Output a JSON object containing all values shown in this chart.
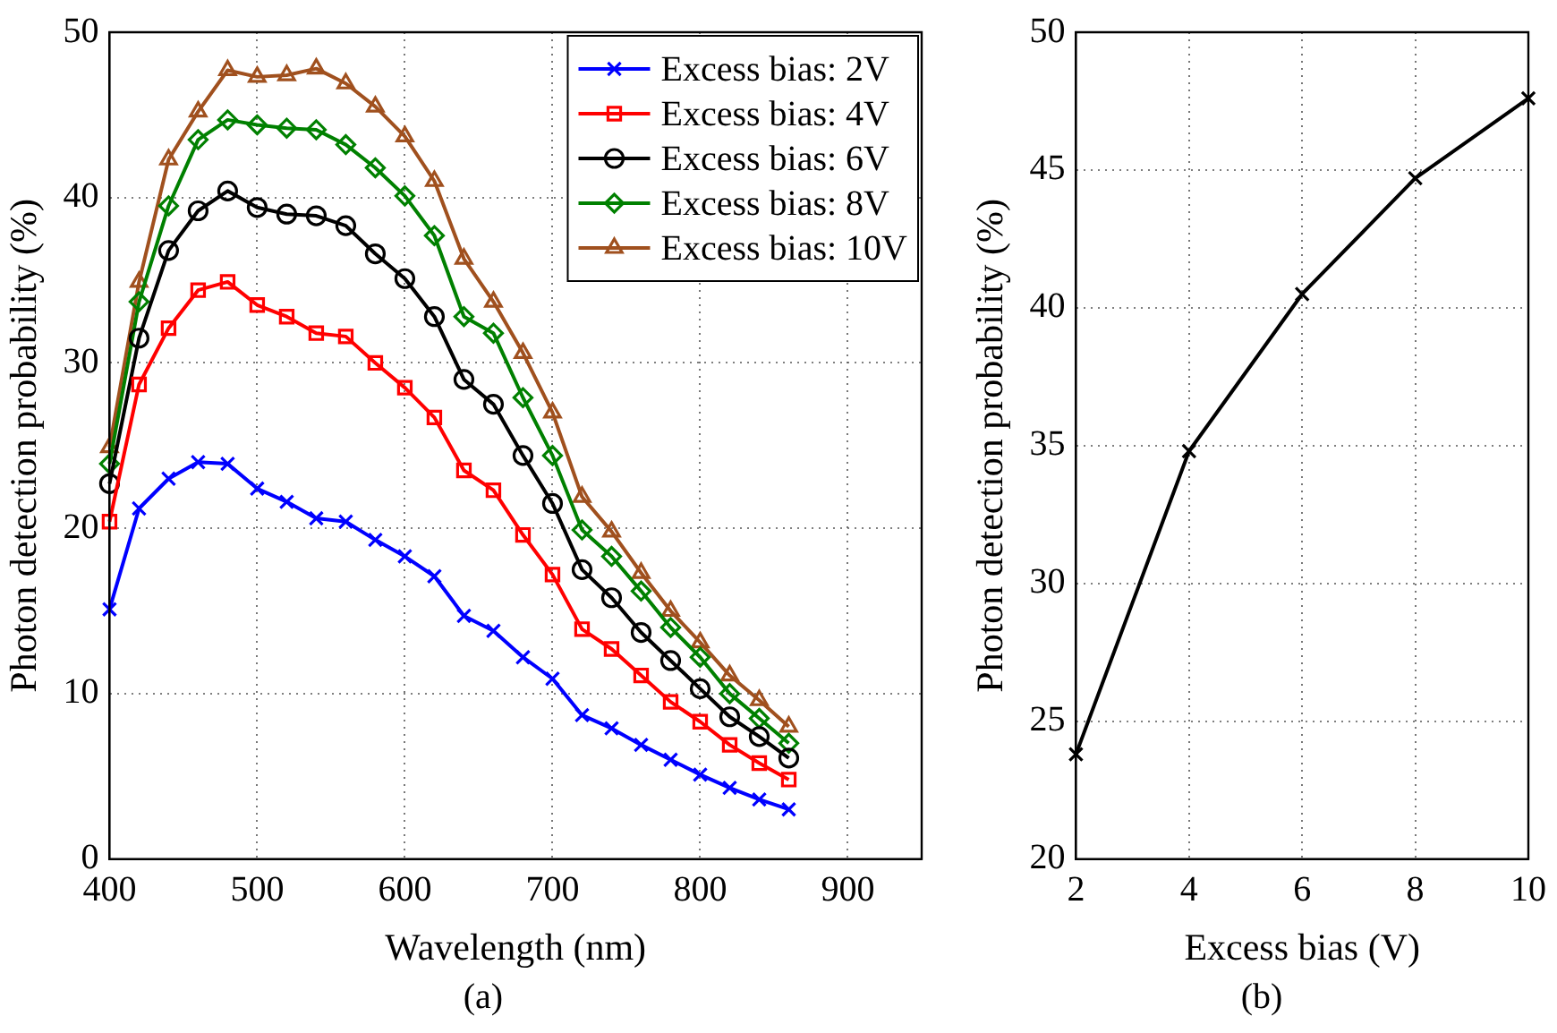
{
  "chart_data": [
    {
      "type": "line",
      "xlabel": "Wavelength (nm)",
      "ylabel": "Photon detection probability (%)",
      "annotations": [
        "(a)"
      ],
      "x": [
        400,
        420,
        440,
        460,
        480,
        500,
        520,
        540,
        560,
        580,
        600,
        620,
        640,
        660,
        680,
        700,
        720,
        740,
        760,
        780,
        800,
        820,
        840,
        860
      ],
      "xlim": [
        400,
        950
      ],
      "xticks": [
        400,
        500,
        600,
        700,
        800,
        900
      ],
      "ylim": [
        0,
        50
      ],
      "yticks": [
        0,
        10,
        20,
        30,
        40,
        50
      ],
      "grid": true,
      "legend": "top right",
      "series": [
        {
          "name": "Excess bias: 2V",
          "color": "#0000ff",
          "marker": "cross",
          "values": [
            15.1,
            21.2,
            23.0,
            24.0,
            23.9,
            22.4,
            21.6,
            20.6,
            20.4,
            19.3,
            18.3,
            17.1,
            14.7,
            13.8,
            12.2,
            10.9,
            8.7,
            7.9,
            6.9,
            6.0,
            5.1,
            4.3,
            3.6,
            3.0
          ]
        },
        {
          "name": "Excess bias: 4V",
          "color": "#ff0000",
          "marker": "square",
          "values": [
            20.4,
            28.7,
            32.1,
            34.4,
            34.9,
            33.5,
            32.8,
            31.8,
            31.6,
            30.0,
            28.5,
            26.7,
            23.5,
            22.3,
            19.6,
            17.2,
            13.9,
            12.7,
            11.1,
            9.5,
            8.3,
            6.9,
            5.8,
            4.8
          ]
        },
        {
          "name": "Excess bias: 6V",
          "color": "#000000",
          "marker": "circle",
          "values": [
            22.7,
            31.5,
            36.8,
            39.2,
            40.4,
            39.4,
            39.0,
            38.9,
            38.3,
            36.6,
            35.1,
            32.8,
            29.0,
            27.5,
            24.4,
            21.5,
            17.5,
            15.8,
            13.7,
            12.0,
            10.3,
            8.6,
            7.4,
            6.1
          ]
        },
        {
          "name": "Excess bias: 8V",
          "color": "#008000",
          "marker": "diamond",
          "values": [
            23.9,
            33.7,
            39.5,
            43.5,
            44.7,
            44.4,
            44.2,
            44.1,
            43.2,
            41.8,
            40.1,
            37.7,
            32.8,
            31.8,
            27.9,
            24.4,
            19.9,
            18.3,
            16.2,
            14.0,
            12.2,
            10.0,
            8.5,
            7.0
          ]
        },
        {
          "name": "Excess bias: 10V",
          "color": "#a0501e",
          "marker": "triangle",
          "values": [
            24.9,
            34.9,
            42.3,
            45.2,
            47.7,
            47.3,
            47.4,
            47.8,
            46.9,
            45.5,
            43.7,
            41.0,
            36.3,
            33.7,
            30.6,
            27.0,
            21.9,
            19.8,
            17.3,
            15.0,
            13.1,
            11.1,
            9.6,
            8.0
          ]
        }
      ]
    },
    {
      "type": "line",
      "xlabel": "Excess bias (V)",
      "ylabel": "Photon detection probability (%)",
      "annotations": [
        "(b)"
      ],
      "x": [
        2,
        4,
        6,
        8,
        10
      ],
      "xlim": [
        2,
        10
      ],
      "xticks": [
        2,
        4,
        6,
        8,
        10
      ],
      "ylim": [
        20,
        50
      ],
      "yticks": [
        20,
        25,
        30,
        35,
        40,
        45,
        50
      ],
      "grid": true,
      "series": [
        {
          "color": "#000000",
          "marker": "cross",
          "values": [
            23.8,
            34.8,
            40.5,
            44.7,
            47.6
          ]
        }
      ]
    }
  ]
}
